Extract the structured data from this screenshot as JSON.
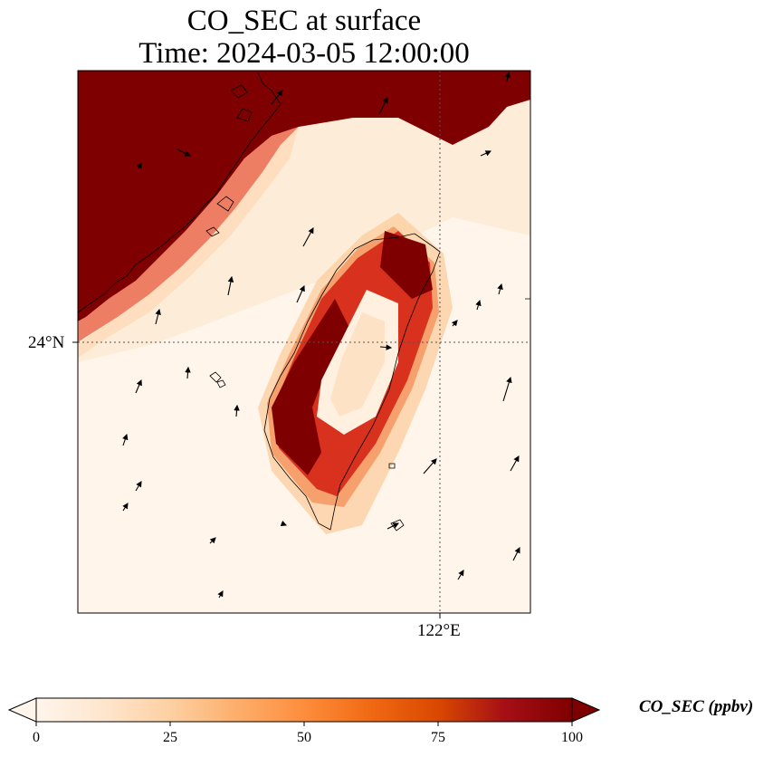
{
  "title": {
    "line1": "CO_SEC at surface",
    "line2": "Time: 2024-03-05 12:00:00"
  },
  "map": {
    "lat_label": "24°N",
    "lon_label": "122°E",
    "field_colors": {
      "low": "#fff5eb",
      "light": "#fdd9b4",
      "mid": "#f16c49",
      "high": "#c0180f",
      "max": "#7f0000"
    }
  },
  "colorbar": {
    "label": "CO_SEC (ppbv)",
    "ticks": [
      "0",
      "25",
      "50",
      "75",
      "100"
    ],
    "stops": [
      "#fff5eb",
      "#fee6ce",
      "#fdd0a2",
      "#fdae6b",
      "#fd8d3c",
      "#f16913",
      "#d94801",
      "#a50f15",
      "#7f0000"
    ]
  }
}
